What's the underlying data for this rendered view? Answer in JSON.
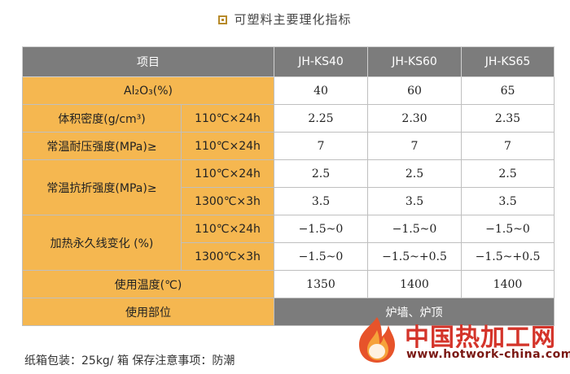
{
  "title": "可塑料主要理化指标",
  "table": {
    "header": {
      "item": "项目",
      "col1": "JH-KS40",
      "col2": "JH-KS60",
      "col3": "JH-KS65"
    },
    "al2o3": {
      "label": "Al₂O₃(%)",
      "v1": "40",
      "v2": "60",
      "v3": "65"
    },
    "density": {
      "label": "体积密度(g/cm³)",
      "cond": "110℃×24h",
      "v1": "2.25",
      "v2": "2.30",
      "v3": "2.35"
    },
    "compress": {
      "label": "常温耐压强度(MPa)≥",
      "cond": "110℃×24h",
      "v1": "7",
      "v2": "7",
      "v3": "7"
    },
    "flexural": {
      "label": "常温抗折强度(MPa)≥",
      "r1": {
        "cond": "110℃×24h",
        "v1": "2.5",
        "v2": "2.5",
        "v3": "2.5"
      },
      "r2": {
        "cond": "1300℃×3h",
        "v1": "3.5",
        "v2": "3.5",
        "v3": "3.5"
      }
    },
    "linear": {
      "label": "加热永久线变化 (%)",
      "r1": {
        "cond": "110℃×24h",
        "v1": "−1.5~0",
        "v2": "−1.5~0",
        "v3": "−1.5~0"
      },
      "r2": {
        "cond": "1300℃×3h",
        "v1": "−1.5~0",
        "v2": "−1.5~+0.5",
        "v3": "−1.5~+0.5"
      }
    },
    "temp": {
      "label": "使用温度(℃)",
      "v1": "1350",
      "v2": "1400",
      "v3": "1400"
    },
    "usage": {
      "label": "使用部位",
      "value": "炉墙、炉顶"
    }
  },
  "footer": "纸箱包装：25kg/ 箱 保存注意事项：防潮",
  "watermark": {
    "brand": "中国热加工网",
    "url": "www.hotwork-china.com"
  },
  "colors": {
    "header_gray": "#7c7c7c",
    "label_orange": "#f5b750",
    "brand_red": "#d4342a"
  }
}
